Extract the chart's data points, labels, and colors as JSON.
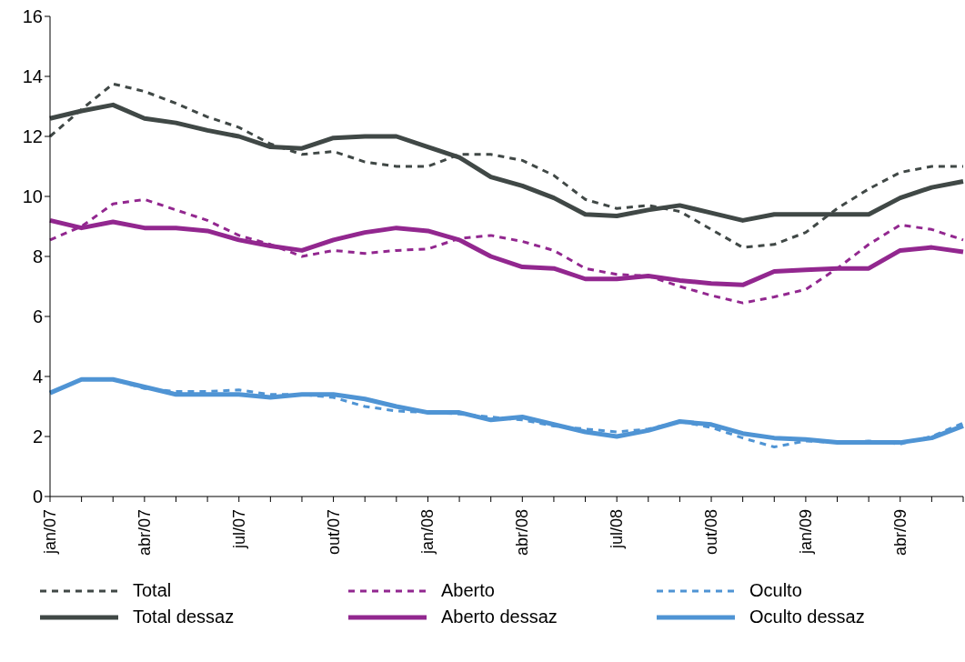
{
  "chart_data": {
    "type": "line",
    "categories": [
      "jan/07",
      null,
      null,
      "abr/07",
      null,
      null,
      "jul/07",
      null,
      null,
      "out/07",
      null,
      null,
      "jan/08",
      null,
      null,
      "abr/08",
      null,
      null,
      "jul/08",
      null,
      null,
      "out/08",
      null,
      null,
      "jan/09",
      null,
      null,
      "abr/09",
      null,
      null
    ],
    "ylim": [
      0,
      16
    ],
    "yticks": [
      0,
      2,
      4,
      6,
      8,
      10,
      12,
      14,
      16
    ],
    "grid": false,
    "legend": "bottom",
    "marker": "none",
    "series": [
      {
        "name": "Total",
        "color": "#404846",
        "line_style": "dashed",
        "values": [
          12.0,
          12.9,
          13.75,
          13.5,
          13.1,
          12.65,
          12.3,
          11.75,
          11.4,
          11.5,
          11.15,
          11.0,
          11.0,
          11.4,
          11.4,
          11.2,
          10.7,
          9.9,
          9.6,
          9.7,
          9.5,
          8.9,
          8.3,
          8.4,
          8.8,
          9.6,
          10.25,
          10.8,
          11.0,
          11.0
        ]
      },
      {
        "name": "Aberto",
        "color": "#92278f",
        "line_style": "dashed",
        "values": [
          8.55,
          9.0,
          9.75,
          9.9,
          9.55,
          9.2,
          8.7,
          8.4,
          8.0,
          8.2,
          8.1,
          8.2,
          8.25,
          8.6,
          8.7,
          8.5,
          8.2,
          7.6,
          7.4,
          7.35,
          7.0,
          6.7,
          6.45,
          6.65,
          6.9,
          7.6,
          8.4,
          9.05,
          8.9,
          8.55
        ]
      },
      {
        "name": "Oculto",
        "color": "#4f94d4",
        "line_style": "dashed",
        "values": [
          3.45,
          3.9,
          3.9,
          3.6,
          3.5,
          3.5,
          3.55,
          3.4,
          3.4,
          3.3,
          3.0,
          2.85,
          2.8,
          2.75,
          2.65,
          2.55,
          2.35,
          2.25,
          2.15,
          2.25,
          2.5,
          2.3,
          1.95,
          1.65,
          1.85,
          1.8,
          1.85,
          1.75,
          2.0,
          2.45
        ]
      },
      {
        "name": "Total dessaz",
        "color": "#404846",
        "line_style": "solid",
        "values": [
          12.6,
          12.85,
          13.05,
          12.6,
          12.45,
          12.2,
          12.0,
          11.65,
          11.6,
          11.95,
          12.0,
          12.0,
          11.65,
          11.3,
          10.65,
          10.35,
          9.95,
          9.4,
          9.35,
          9.55,
          9.7,
          9.45,
          9.2,
          9.4,
          9.4,
          9.4,
          9.4,
          9.95,
          10.3,
          10.5
        ]
      },
      {
        "name": "Aberto dessaz",
        "color": "#92278f",
        "line_style": "solid",
        "values": [
          9.2,
          8.95,
          9.15,
          8.95,
          8.95,
          8.85,
          8.55,
          8.35,
          8.2,
          8.55,
          8.8,
          8.95,
          8.85,
          8.55,
          8.0,
          7.65,
          7.6,
          7.25,
          7.25,
          7.35,
          7.2,
          7.1,
          7.05,
          7.5,
          7.55,
          7.6,
          7.6,
          8.2,
          8.3,
          8.15
        ]
      },
      {
        "name": "Oculto dessaz",
        "color": "#4f94d4",
        "line_style": "solid",
        "values": [
          3.45,
          3.9,
          3.9,
          3.65,
          3.4,
          3.4,
          3.4,
          3.3,
          3.4,
          3.4,
          3.25,
          3.0,
          2.8,
          2.8,
          2.55,
          2.65,
          2.4,
          2.15,
          2.0,
          2.2,
          2.5,
          2.4,
          2.1,
          1.95,
          1.9,
          1.8,
          1.8,
          1.8,
          1.95,
          2.35
        ]
      }
    ]
  }
}
